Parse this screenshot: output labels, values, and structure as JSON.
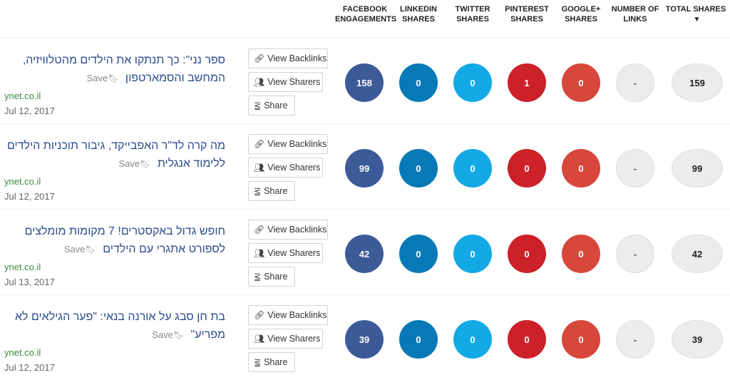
{
  "headers": {
    "facebook": [
      "FACEBOOK",
      "ENGAGEMENTS"
    ],
    "linkedin": [
      "LINKEDIN",
      "SHARES"
    ],
    "twitter": [
      "TWITTER",
      "SHARES"
    ],
    "pinterest": [
      "PINTEREST",
      "SHARES"
    ],
    "googleplus": [
      "GOOGLE+",
      "SHARES"
    ],
    "links": [
      "NUMBER OF",
      "LINKS"
    ],
    "total": "TOTAL SHARES"
  },
  "labels": {
    "save": "Save",
    "view_backlinks": "View Backlinks",
    "view_sharers": "View Sharers",
    "share": "Share"
  },
  "rows": [
    {
      "title": "ספר נני\": כך תנתקו את הילדים מהטלוויזיה, המחשב והסמארטפון",
      "domain": "ynet.co.il",
      "date": "Jul 12, 2017",
      "facebook": "158",
      "linkedin": "0",
      "twitter": "0",
      "pinterest": "1",
      "googleplus": "0",
      "links": "-",
      "total": "159"
    },
    {
      "title": "מה קרה לד\"ר האפבייקד, גיבור תוכניות הילדים ללימוד אנגלית",
      "domain": "ynet.co.il",
      "date": "Jul 12, 2017",
      "facebook": "99",
      "linkedin": "0",
      "twitter": "0",
      "pinterest": "0",
      "googleplus": "0",
      "links": "-",
      "total": "99"
    },
    {
      "title": "חופש גדול באקסטרים! 7 מקומות מומלצים לספורט אתגרי עם הילדים",
      "domain": "ynet.co.il",
      "date": "Jul 13, 2017",
      "facebook": "42",
      "linkedin": "0",
      "twitter": "0",
      "pinterest": "0",
      "googleplus": "0",
      "links": "-",
      "total": "42"
    },
    {
      "title": "בת חן סבג על אורנה בנאי: \"פער הגילאים לא מפריע\"",
      "domain": "ynet.co.il",
      "date": "Jul 12, 2017",
      "facebook": "39",
      "linkedin": "0",
      "twitter": "0",
      "pinterest": "0",
      "googleplus": "0",
      "links": "-",
      "total": "39"
    }
  ]
}
